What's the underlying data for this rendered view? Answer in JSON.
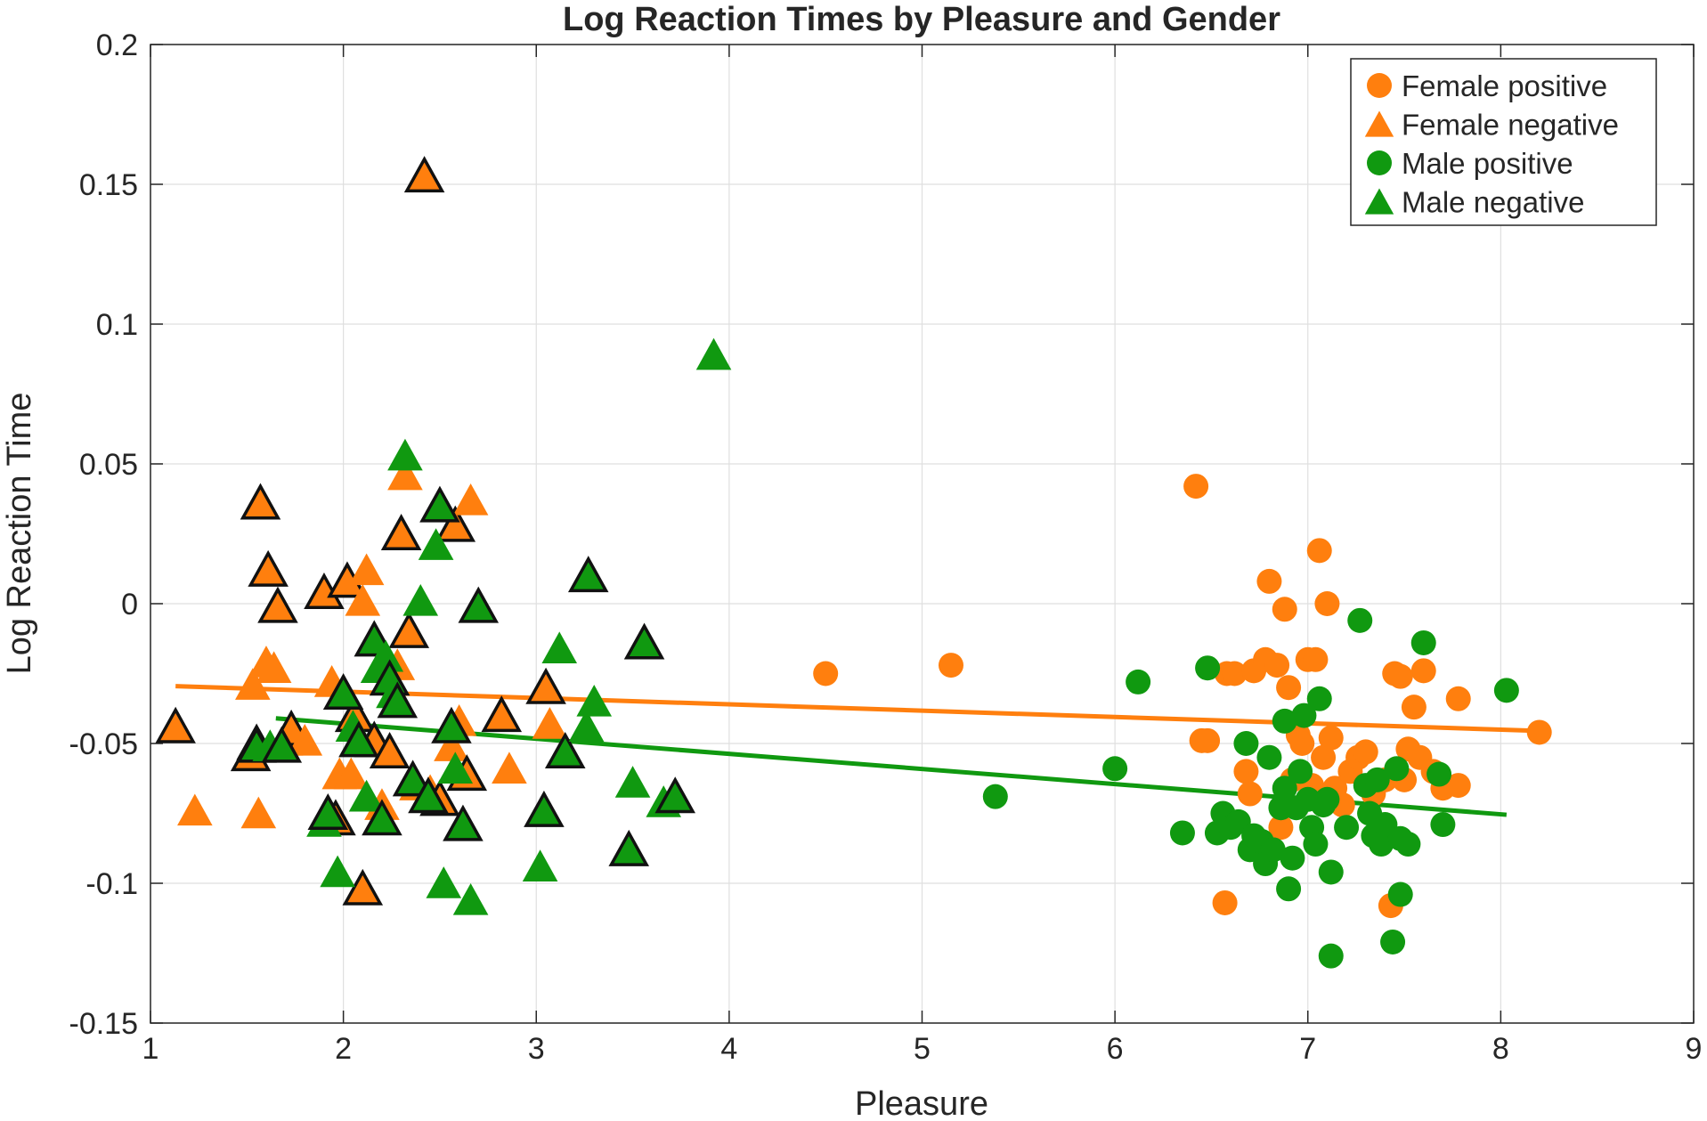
{
  "colors": {
    "female": "#ff7f0e",
    "male": "#109910",
    "axis": "#262626",
    "grid": "#dfdfdf"
  },
  "chart_data": {
    "type": "scatter",
    "title": "Log Reaction Times by Pleasure and Gender",
    "xlabel": "Pleasure",
    "ylabel": "Log Reaction Time",
    "xlim": [
      1,
      9
    ],
    "ylim": [
      -0.15,
      0.2
    ],
    "xticks": [
      1,
      2,
      3,
      4,
      5,
      6,
      7,
      8,
      9
    ],
    "xtick_labels": [
      "1",
      "2",
      "3",
      "4",
      "5",
      "6",
      "7",
      "8",
      "9"
    ],
    "yticks": [
      -0.15,
      -0.1,
      -0.05,
      0,
      0.05,
      0.1,
      0.15,
      0.2
    ],
    "ytick_labels": [
      "-0.15",
      "-0.1",
      "-0.05",
      "0",
      "0.05",
      "0.1",
      "0.15",
      "0.2"
    ],
    "grid": true,
    "legend_position": "top-right",
    "series": [
      {
        "name": "Female positive",
        "marker": "circle",
        "color": "#ff7f0e",
        "points": [
          [
            4.5,
            -0.025
          ],
          [
            5.15,
            -0.022
          ],
          [
            6.42,
            0.042
          ],
          [
            6.45,
            -0.049
          ],
          [
            6.48,
            -0.049
          ],
          [
            6.57,
            -0.107
          ],
          [
            6.58,
            -0.025
          ],
          [
            6.62,
            -0.025
          ],
          [
            6.68,
            -0.06
          ],
          [
            6.7,
            -0.068
          ],
          [
            6.72,
            -0.024
          ],
          [
            6.78,
            -0.02
          ],
          [
            6.8,
            0.008
          ],
          [
            6.84,
            -0.022
          ],
          [
            6.86,
            -0.08
          ],
          [
            6.88,
            -0.002
          ],
          [
            6.9,
            -0.03
          ],
          [
            6.92,
            -0.063
          ],
          [
            6.95,
            -0.047
          ],
          [
            6.97,
            -0.05
          ],
          [
            7.0,
            -0.02
          ],
          [
            7.02,
            -0.065
          ],
          [
            7.04,
            -0.02
          ],
          [
            7.06,
            0.019
          ],
          [
            7.08,
            -0.055
          ],
          [
            7.1,
            0.0
          ],
          [
            7.12,
            -0.048
          ],
          [
            7.14,
            -0.066
          ],
          [
            7.18,
            -0.072
          ],
          [
            7.22,
            -0.06
          ],
          [
            7.26,
            -0.055
          ],
          [
            7.3,
            -0.053
          ],
          [
            7.34,
            -0.068
          ],
          [
            7.4,
            -0.063
          ],
          [
            7.43,
            -0.108
          ],
          [
            7.45,
            -0.025
          ],
          [
            7.48,
            -0.026
          ],
          [
            7.5,
            -0.063
          ],
          [
            7.52,
            -0.052
          ],
          [
            7.55,
            -0.037
          ],
          [
            7.58,
            -0.055
          ],
          [
            7.6,
            -0.024
          ],
          [
            7.65,
            -0.06
          ],
          [
            7.7,
            -0.066
          ],
          [
            7.78,
            -0.065
          ],
          [
            7.78,
            -0.034
          ],
          [
            8.2,
            -0.046
          ]
        ]
      },
      {
        "name": "Female negative",
        "marker": "triangle",
        "color": "#ff7f0e",
        "points": [
          [
            1.13,
            -0.045
          ],
          [
            1.23,
            -0.075
          ],
          [
            1.52,
            -0.055
          ],
          [
            1.53,
            -0.03
          ],
          [
            1.55,
            -0.051
          ],
          [
            1.56,
            -0.076
          ],
          [
            1.57,
            0.035
          ],
          [
            1.6,
            -0.022
          ],
          [
            1.61,
            0.011
          ],
          [
            1.64,
            -0.024
          ],
          [
            1.66,
            -0.002
          ],
          [
            1.7,
            -0.05
          ],
          [
            1.73,
            -0.046
          ],
          [
            1.8,
            -0.05
          ],
          [
            1.9,
            0.003
          ],
          [
            1.94,
            -0.029
          ],
          [
            1.96,
            -0.078
          ],
          [
            1.98,
            -0.062
          ],
          [
            2.02,
            0.007
          ],
          [
            2.04,
            -0.062
          ],
          [
            2.06,
            -0.041
          ],
          [
            2.1,
            0.0
          ],
          [
            2.1,
            -0.103
          ],
          [
            2.12,
            0.011
          ],
          [
            2.16,
            -0.05
          ],
          [
            2.2,
            -0.073
          ],
          [
            2.24,
            -0.054
          ],
          [
            2.28,
            -0.023
          ],
          [
            2.3,
            0.024
          ],
          [
            2.32,
            0.045
          ],
          [
            2.34,
            -0.011
          ],
          [
            2.38,
            -0.066
          ],
          [
            2.42,
            0.152
          ],
          [
            2.45,
            -0.068
          ],
          [
            2.5,
            -0.071
          ],
          [
            2.56,
            -0.052
          ],
          [
            2.58,
            0.027
          ],
          [
            2.6,
            -0.043
          ],
          [
            2.64,
            -0.062
          ],
          [
            2.66,
            0.036
          ],
          [
            2.82,
            -0.041
          ],
          [
            2.86,
            -0.06
          ],
          [
            3.05,
            -0.031
          ],
          [
            3.07,
            -0.044
          ]
        ]
      },
      {
        "name": "Male positive",
        "marker": "circle",
        "color": "#109910",
        "points": [
          [
            5.38,
            -0.069
          ],
          [
            6.0,
            -0.059
          ],
          [
            6.12,
            -0.028
          ],
          [
            6.35,
            -0.082
          ],
          [
            6.48,
            -0.023
          ],
          [
            6.53,
            -0.082
          ],
          [
            6.56,
            -0.075
          ],
          [
            6.6,
            -0.08
          ],
          [
            6.64,
            -0.078
          ],
          [
            6.68,
            -0.05
          ],
          [
            6.7,
            -0.088
          ],
          [
            6.72,
            -0.083
          ],
          [
            6.76,
            -0.085
          ],
          [
            6.78,
            -0.093
          ],
          [
            6.8,
            -0.055
          ],
          [
            6.82,
            -0.088
          ],
          [
            6.86,
            -0.073
          ],
          [
            6.88,
            -0.066
          ],
          [
            6.88,
            -0.042
          ],
          [
            6.9,
            -0.102
          ],
          [
            6.92,
            -0.091
          ],
          [
            6.94,
            -0.073
          ],
          [
            6.96,
            -0.06
          ],
          [
            6.98,
            -0.04
          ],
          [
            7.0,
            -0.07
          ],
          [
            7.02,
            -0.08
          ],
          [
            7.04,
            -0.086
          ],
          [
            7.06,
            -0.034
          ],
          [
            7.08,
            -0.072
          ],
          [
            7.1,
            -0.07
          ],
          [
            7.12,
            -0.126
          ],
          [
            7.12,
            -0.096
          ],
          [
            7.2,
            -0.08
          ],
          [
            7.27,
            -0.006
          ],
          [
            7.3,
            -0.065
          ],
          [
            7.32,
            -0.075
          ],
          [
            7.34,
            -0.083
          ],
          [
            7.36,
            -0.063
          ],
          [
            7.38,
            -0.086
          ],
          [
            7.4,
            -0.079
          ],
          [
            7.44,
            -0.121
          ],
          [
            7.46,
            -0.059
          ],
          [
            7.48,
            -0.084
          ],
          [
            7.48,
            -0.104
          ],
          [
            7.52,
            -0.086
          ],
          [
            7.6,
            -0.014
          ],
          [
            7.68,
            -0.061
          ],
          [
            7.7,
            -0.079
          ],
          [
            8.03,
            -0.031
          ]
        ]
      },
      {
        "name": "Male negative",
        "marker": "triangle",
        "color": "#109910",
        "points": [
          [
            1.55,
            -0.052
          ],
          [
            1.62,
            -0.052
          ],
          [
            1.68,
            -0.052
          ],
          [
            1.9,
            -0.079
          ],
          [
            1.92,
            -0.076
          ],
          [
            1.97,
            -0.097
          ],
          [
            2.0,
            -0.033
          ],
          [
            2.05,
            -0.045
          ],
          [
            2.08,
            -0.05
          ],
          [
            2.12,
            -0.07
          ],
          [
            2.16,
            -0.014
          ],
          [
            2.18,
            -0.024
          ],
          [
            2.2,
            -0.078
          ],
          [
            2.22,
            -0.02
          ],
          [
            2.24,
            -0.028
          ],
          [
            2.26,
            -0.033
          ],
          [
            2.28,
            -0.036
          ],
          [
            2.32,
            0.052
          ],
          [
            2.36,
            -0.064
          ],
          [
            2.4,
            0.0
          ],
          [
            2.44,
            -0.07
          ],
          [
            2.48,
            0.02
          ],
          [
            2.5,
            0.034
          ],
          [
            2.52,
            -0.101
          ],
          [
            2.56,
            -0.045
          ],
          [
            2.58,
            -0.06
          ],
          [
            2.62,
            -0.08
          ],
          [
            2.66,
            -0.107
          ],
          [
            2.7,
            -0.002
          ],
          [
            3.02,
            -0.095
          ],
          [
            3.04,
            -0.075
          ],
          [
            3.12,
            -0.017
          ],
          [
            3.15,
            -0.054
          ],
          [
            3.26,
            -0.045
          ],
          [
            3.27,
            0.009
          ],
          [
            3.3,
            -0.036
          ],
          [
            3.48,
            -0.089
          ],
          [
            3.5,
            -0.065
          ],
          [
            3.56,
            -0.015
          ],
          [
            3.66,
            -0.072
          ],
          [
            3.72,
            -0.07
          ],
          [
            3.92,
            0.088
          ]
        ]
      }
    ],
    "fits": [
      {
        "group": "Female",
        "color": "#ff7f0e",
        "x": [
          1.13,
          8.2
        ],
        "y": [
          -0.0295,
          -0.0455
        ]
      },
      {
        "group": "Male",
        "color": "#109910",
        "x": [
          1.65,
          8.03
        ],
        "y": [
          -0.041,
          -0.0755
        ]
      }
    ]
  }
}
